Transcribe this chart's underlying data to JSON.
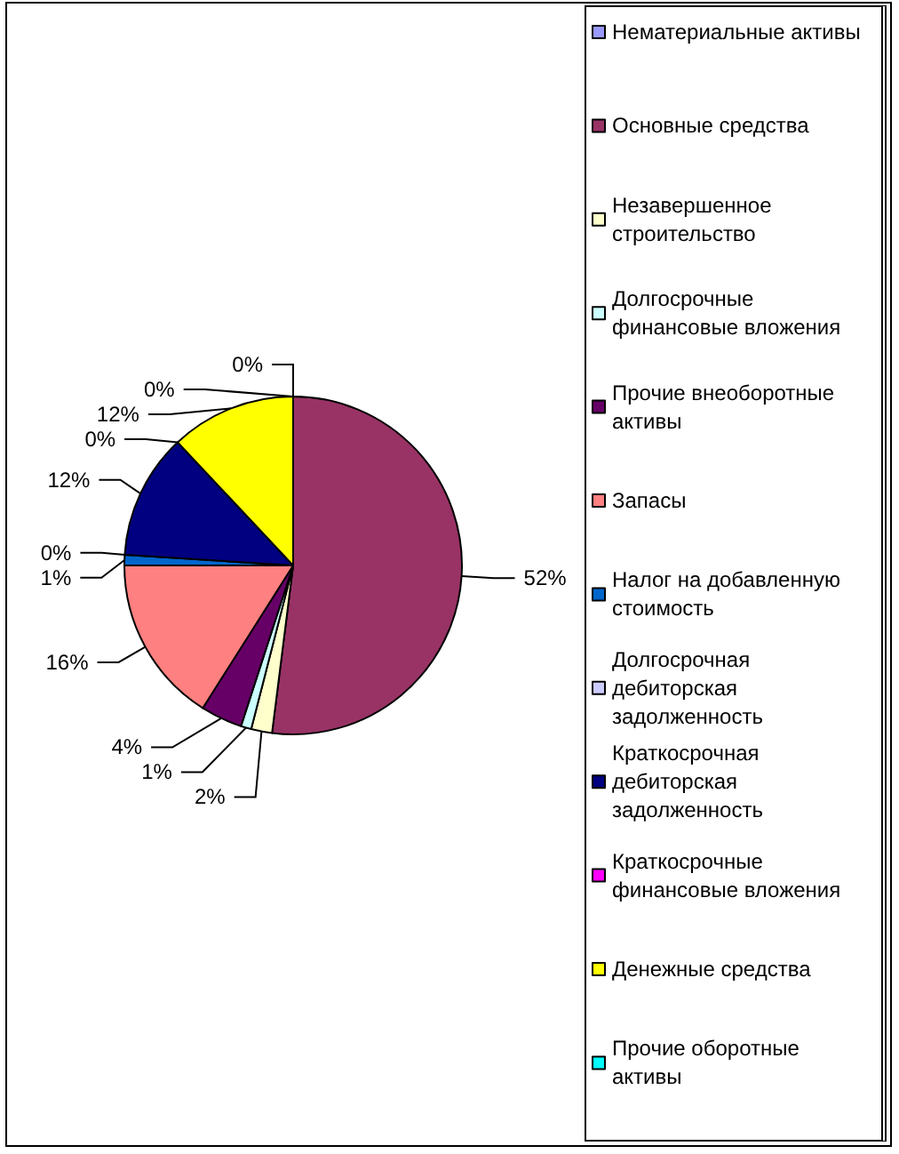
{
  "chart_data": {
    "type": "pie",
    "categories": [
      "Нематериальные активы",
      "Основные средства",
      "Незавершенное строительство",
      "Долгосрочные финансовые вложения",
      "Прочие внеоборотные активы",
      "Запасы",
      "Налог на добавленную стоимость",
      "Долгосрочная дебиторская задолженность",
      "Краткосрочная дебиторская задолженность",
      "Краткосрочные финансовые вложения",
      "Денежные средства",
      "Прочие оборотные активы"
    ],
    "values": [
      0,
      52,
      2,
      1,
      4,
      16,
      1,
      0,
      12,
      0,
      12,
      0
    ],
    "value_labels": [
      "0%",
      "52%",
      "2%",
      "1%",
      "4%",
      "16%",
      "1%",
      "0%",
      "12%",
      "0%",
      "12%",
      "0%"
    ],
    "colors": [
      "#9999ff",
      "#993366",
      "#ffffcc",
      "#ccffff",
      "#660066",
      "#ff8080",
      "#0066cc",
      "#ccccff",
      "#000080",
      "#ff00ff",
      "#ffff00",
      "#00ffff"
    ],
    "legend": "right"
  }
}
